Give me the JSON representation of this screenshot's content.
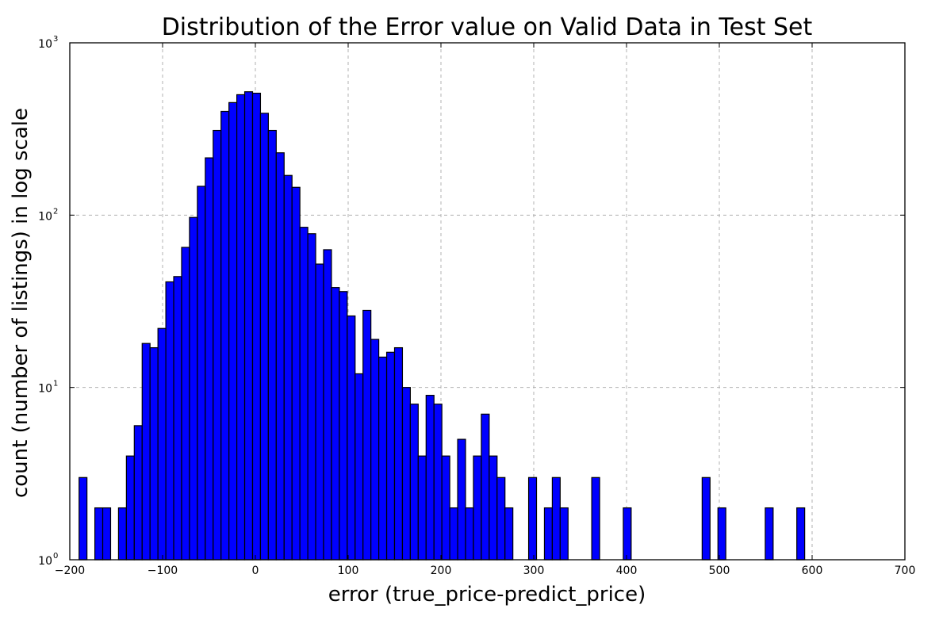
{
  "chart_data": {
    "type": "bar",
    "title": "Distribution of the Error value on Valid Data in Test Set",
    "xlabel": "error (true_price-predict_price)",
    "ylabel": "count (number of listings) in log scale",
    "xlim": [
      -200,
      700
    ],
    "ylim": [
      1,
      1000
    ],
    "yscale": "log",
    "grid": true,
    "xticks": [
      -200,
      -100,
      0,
      100,
      200,
      300,
      400,
      500,
      600,
      700
    ],
    "xtick_labels": [
      "−200",
      "−100",
      "0",
      "100",
      "200",
      "300",
      "400",
      "500",
      "600",
      "700"
    ],
    "yticks": [
      1,
      10,
      100,
      1000
    ],
    "ytick_base": "10",
    "ytick_exponents": [
      "0",
      "1",
      "2",
      "3"
    ],
    "bin_width": 8.5,
    "bin_left_edges": [
      -190,
      -173,
      -164.5,
      -147.5,
      -139,
      -130.5,
      -122,
      -113.5,
      -105,
      -96.5,
      -88,
      -79.5,
      -71,
      -62.5,
      -54,
      -45.5,
      -37,
      -28.5,
      -20,
      -11.5,
      -3,
      5.5,
      14,
      22.5,
      31,
      39.5,
      48,
      56.5,
      65,
      73.5,
      82,
      90.5,
      99,
      107.5,
      116,
      124.5,
      133,
      141.5,
      150,
      158.5,
      167,
      175.5,
      184,
      192.5,
      201,
      209.5,
      218,
      226.5,
      235,
      243.5,
      252,
      260.5,
      269,
      294.5,
      311.5,
      320,
      328.5,
      362.5,
      396.5,
      481.5,
      498.5,
      549.5,
      583.5
    ],
    "values": [
      3,
      2,
      2,
      2,
      4,
      6,
      18,
      17,
      22,
      41,
      44,
      65,
      97,
      147,
      215,
      310,
      400,
      450,
      500,
      520,
      510,
      390,
      310,
      230,
      170,
      145,
      85,
      78,
      52,
      63,
      38,
      36,
      26,
      12,
      28,
      19,
      15,
      16,
      17,
      10,
      8,
      4,
      9,
      8,
      4,
      2,
      5,
      2,
      4,
      7,
      4,
      3,
      2,
      3,
      2,
      3,
      2,
      3,
      2,
      3,
      2,
      2,
      2
    ]
  }
}
